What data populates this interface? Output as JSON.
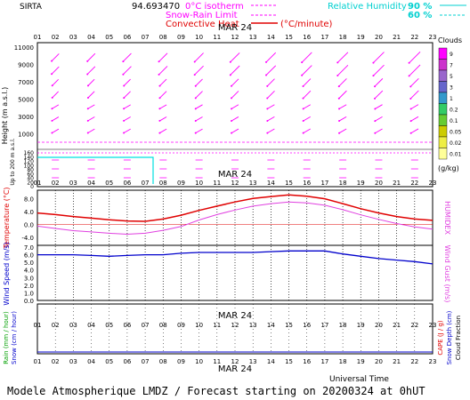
{
  "header": {
    "site": "SIRTA",
    "coord": "94.693470",
    "legend_isotherm": "0°C isotherm",
    "legend_snow": "Snow-Rain Limit",
    "legend_conv": "Convective Heat",
    "legend_conv_unit": "(°C/minute)",
    "legend_rh": "Relative Humidity",
    "rh_90": "90 %",
    "rh_60": "60 %"
  },
  "axes": {
    "hours": [
      "01",
      "02",
      "03",
      "04",
      "05",
      "06",
      "07",
      "08",
      "09",
      "10",
      "11",
      "12",
      "13",
      "14",
      "15",
      "16",
      "17",
      "18",
      "19",
      "20",
      "21",
      "22",
      "23"
    ],
    "date_label": "MAR 24",
    "universal_time": "Universal Time"
  },
  "colors": {
    "magenta": "#ff00ff",
    "cyan": "#00e0e0",
    "red": "#e00000",
    "blue": "#0000cc",
    "pink": "#e040e0",
    "green": "#00a000",
    "black": "#000000"
  },
  "footer": {
    "text": "Modele Atmospherique LMDZ / Forecast starting on 20200324 at 0hUT"
  },
  "chart_data": [
    {
      "type": "wind-barbs",
      "ylabel": "Height (m a.s.l.)",
      "ylabel2": "Up to 200 m a.s.l.",
      "yticks": [
        1000,
        3000,
        5000,
        7000,
        9000,
        11000
      ],
      "yticks_low": [
        0,
        20,
        40,
        60,
        80,
        100,
        120,
        140,
        160
      ],
      "clouds_title": "Clouds",
      "clouds_unit": "(g/kg)",
      "cloud_scale": [
        "9",
        "7",
        "5",
        "3",
        "1",
        "0.2",
        "0.1",
        "0.05",
        "0.02",
        "0.01"
      ],
      "cloud_colors": [
        "#ff00ff",
        "#cc33cc",
        "#9966cc",
        "#6666cc",
        "#3399cc",
        "#33cc66",
        "#66cc33",
        "#cccc00",
        "#eeee44",
        "#ffff99"
      ]
    },
    {
      "type": "line",
      "ylabel": "Temperature (°C)",
      "ylabel2": "HUMIDEX",
      "yticks": [
        -4.0,
        0.0,
        4.0,
        8.0
      ],
      "ylim": [
        -6,
        10
      ],
      "series": [
        {
          "name": "Temperature",
          "values": [
            3.5,
            3.0,
            2.4,
            1.9,
            1.4,
            1.0,
            0.9,
            1.6,
            2.8,
            4.3,
            5.6,
            6.9,
            8.0,
            8.6,
            9.1,
            8.7,
            7.9,
            6.4,
            4.8,
            3.5,
            2.4,
            1.6,
            1.2
          ]
        },
        {
          "name": "HUMIDEX",
          "values": [
            -0.6,
            -1.3,
            -2.0,
            -2.4,
            -2.8,
            -3.1,
            -2.8,
            -1.9,
            -0.7,
            1.3,
            3.0,
            4.4,
            5.6,
            6.4,
            6.9,
            6.6,
            5.9,
            4.5,
            2.9,
            1.5,
            0.2,
            -0.8,
            -1.5
          ]
        }
      ]
    },
    {
      "type": "line",
      "ylabel": "Wind Speed (m/s)",
      "ylabel2": "Wind Gust (m/s)",
      "yticks": [
        0.0,
        1.0,
        2.0,
        3.0,
        4.0,
        5.0,
        6.0,
        7.0
      ],
      "ylim": [
        0,
        7
      ],
      "series": [
        {
          "name": "Wind Speed",
          "values": [
            6.0,
            6.0,
            6.0,
            5.9,
            5.8,
            5.9,
            6.0,
            6.0,
            6.2,
            6.3,
            6.3,
            6.3,
            6.3,
            6.4,
            6.5,
            6.5,
            6.5,
            6.1,
            5.8,
            5.5,
            5.3,
            5.1,
            4.8
          ]
        }
      ]
    },
    {
      "type": "bar",
      "ylabel": "Rain (mm / hour)",
      "ylabel2": "Snow (cm / hour)",
      "ylabel3": "CAPE (J / g)",
      "ylabel4": "Snow Depth (cm)",
      "ylabel5": "Cloud Fraction",
      "series": [
        {
          "name": "Rain",
          "values": [
            0,
            0,
            0,
            0,
            0,
            0,
            0,
            0,
            0,
            0,
            0,
            0,
            0,
            0,
            0,
            0,
            0,
            0,
            0,
            0,
            0,
            0,
            0
          ]
        }
      ]
    }
  ]
}
